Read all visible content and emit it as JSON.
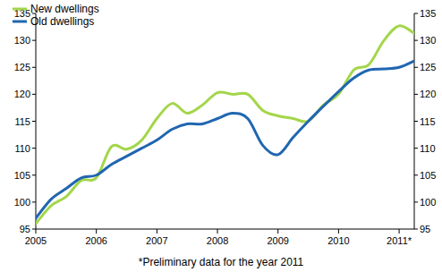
{
  "chart_data": {
    "type": "line",
    "categories": [
      "2005",
      null,
      null,
      null,
      "2006",
      null,
      null,
      null,
      "2007",
      null,
      null,
      null,
      "2008",
      null,
      null,
      null,
      "2009",
      null,
      null,
      null,
      "2010",
      null,
      null,
      null,
      "2011*",
      null
    ],
    "series": [
      {
        "name": "New dwellings",
        "color": "#a3d64a",
        "values": [
          96,
          99.3,
          101,
          104,
          104.5,
          110.3,
          109.8,
          111.5,
          115.5,
          118.3,
          116.5,
          118,
          120.3,
          120,
          120,
          117,
          116,
          115.5,
          115,
          118,
          120,
          124.5,
          125.5,
          130,
          132.7,
          131.3
        ]
      },
      {
        "name": "Old dwellings",
        "color": "#2066b0",
        "values": [
          97,
          100.5,
          102.5,
          104.5,
          105,
          107,
          108.5,
          110,
          111.5,
          113.5,
          114.5,
          114.5,
          115.5,
          116.5,
          115.5,
          110.5,
          108.8,
          112,
          115,
          117.8,
          120.5,
          123,
          124.5,
          124.7,
          125,
          126.2
        ]
      }
    ],
    "ylim": [
      95,
      135
    ],
    "yticks": [
      95,
      100,
      105,
      110,
      115,
      120,
      125,
      130,
      135
    ],
    "grid": false,
    "legend": "top-left",
    "line_style": "smooth",
    "annotations": [
      "*Preliminary data for the year 2011"
    ]
  }
}
